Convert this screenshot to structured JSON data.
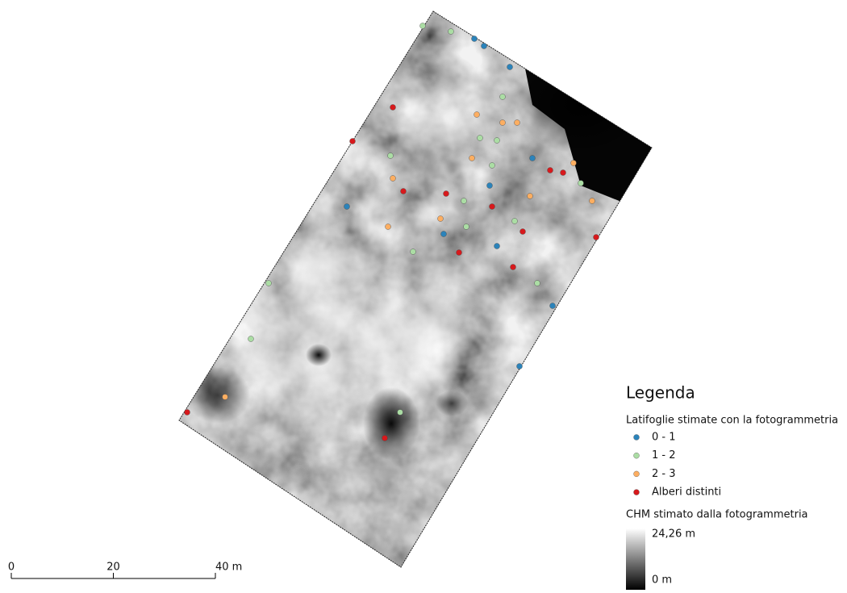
{
  "legend": {
    "title": "Legenda",
    "points_group": {
      "title": "Latifoglie stimate con la fotogrammetria",
      "items": [
        {
          "label": "0 - 1",
          "color": "#2b83ba"
        },
        {
          "label": "1 - 2",
          "color": "#abdda4"
        },
        {
          "label": "2 - 3",
          "color": "#fdae61"
        },
        {
          "label": "Alberi distinti",
          "color": "#d7191c"
        }
      ]
    },
    "raster": {
      "title": "CHM stimato dalla fotogrammetria",
      "max": {
        "value": 24.26,
        "label": "24,26 m"
      },
      "min": {
        "value": 0,
        "label": "0 m"
      }
    }
  },
  "scale_bar": {
    "ticks": [
      0,
      20,
      {
        "value": 40,
        "label": "40 m"
      }
    ]
  }
}
